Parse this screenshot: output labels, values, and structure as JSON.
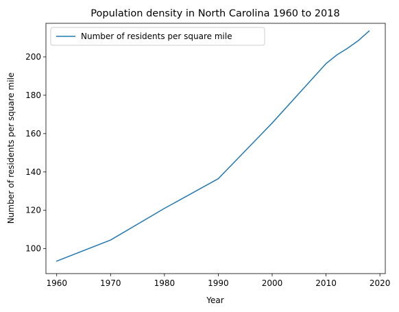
{
  "chart_data": {
    "type": "line",
    "title": "Population density in North Carolina 1960 to 2018",
    "xlabel": "Year",
    "ylabel": "Number of residents per square mile",
    "xlim": [
      1958,
      2021
    ],
    "ylim": [
      87,
      217.5
    ],
    "xticks": [
      1960,
      1970,
      1980,
      1990,
      2000,
      2010,
      2020
    ],
    "yticks": [
      100,
      120,
      140,
      160,
      180,
      200
    ],
    "grid": false,
    "legend": "top-left",
    "series": [
      {
        "name": "Number of residents per square mile",
        "color": "#1f77b4",
        "x": [
          1960,
          1970,
          1980,
          1990,
          2000,
          2010,
          2012,
          2014,
          2016,
          2018
        ],
        "y": [
          93.5,
          104.5,
          121,
          136.5,
          165.5,
          196.5,
          201,
          204.5,
          208.5,
          213.5
        ]
      }
    ]
  }
}
